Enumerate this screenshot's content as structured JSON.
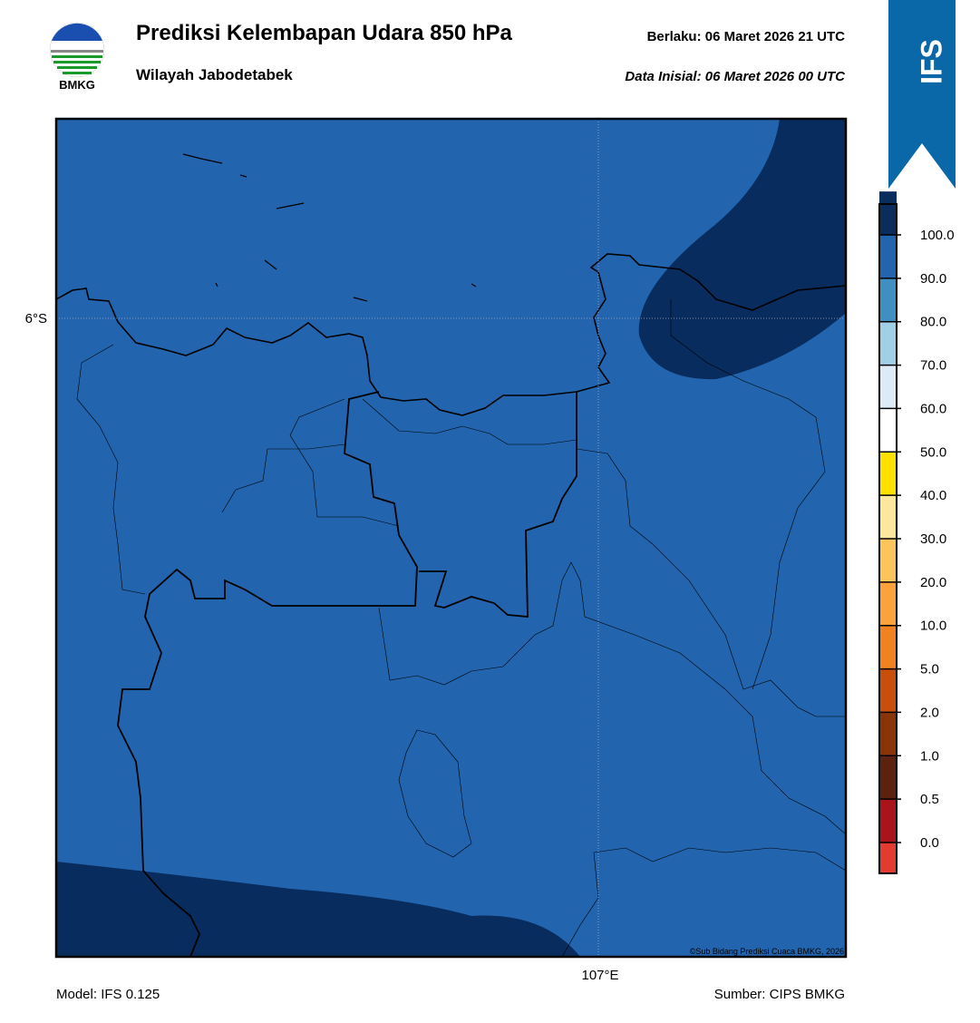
{
  "header": {
    "logo_text": "BMKG",
    "title": "Prediksi Kelembapan Udara 850 hPa",
    "subtitle": "Wilayah Jabodetabek",
    "valid": "Berlaku:  06 Maret 2026 21 UTC",
    "initial": "Data Inisial:  06 Maret 2026 00 UTC",
    "model_badge": "IFS"
  },
  "map": {
    "lat_label": "6°S",
    "lon_label": "107°E",
    "credit": "©Sub Bidang Prediksi Cuaca BMKG, 2026"
  },
  "colorbar": {
    "ticks": [
      {
        "value": 0,
        "label": "0.0"
      },
      {
        "value": 0.5,
        "label": "0.5"
      },
      {
        "value": 1,
        "label": "1.0"
      },
      {
        "value": 2,
        "label": "2.0"
      },
      {
        "value": 5,
        "label": "5.0"
      },
      {
        "value": 10,
        "label": "10.0"
      },
      {
        "value": 20,
        "label": "20.0"
      },
      {
        "value": 30,
        "label": "30.0"
      },
      {
        "value": 40,
        "label": "40.0"
      },
      {
        "value": 50,
        "label": "50.0"
      },
      {
        "value": 60,
        "label": "60.0"
      },
      {
        "value": 70,
        "label": "70.0"
      },
      {
        "value": 80,
        "label": "80.0"
      },
      {
        "value": 90,
        "label": "90.0"
      },
      {
        "value": 100,
        "label": "100.0"
      }
    ],
    "colors": [
      "#e23b30",
      "#a9141a",
      "#5b2210",
      "#8a340a",
      "#c94d0b",
      "#f0821f",
      "#fba23b",
      "#fcc55c",
      "#fde79c",
      "#ffe100",
      "#ffffff",
      "#dcebf5",
      "#a0d0e6",
      "#3f8fc1",
      "#2264ae",
      "#0b2d5c",
      "#2b0a4f"
    ]
  },
  "footer": {
    "model": "Model: IFS 0.125",
    "source": "Sumber: CIPS BMKG"
  }
}
